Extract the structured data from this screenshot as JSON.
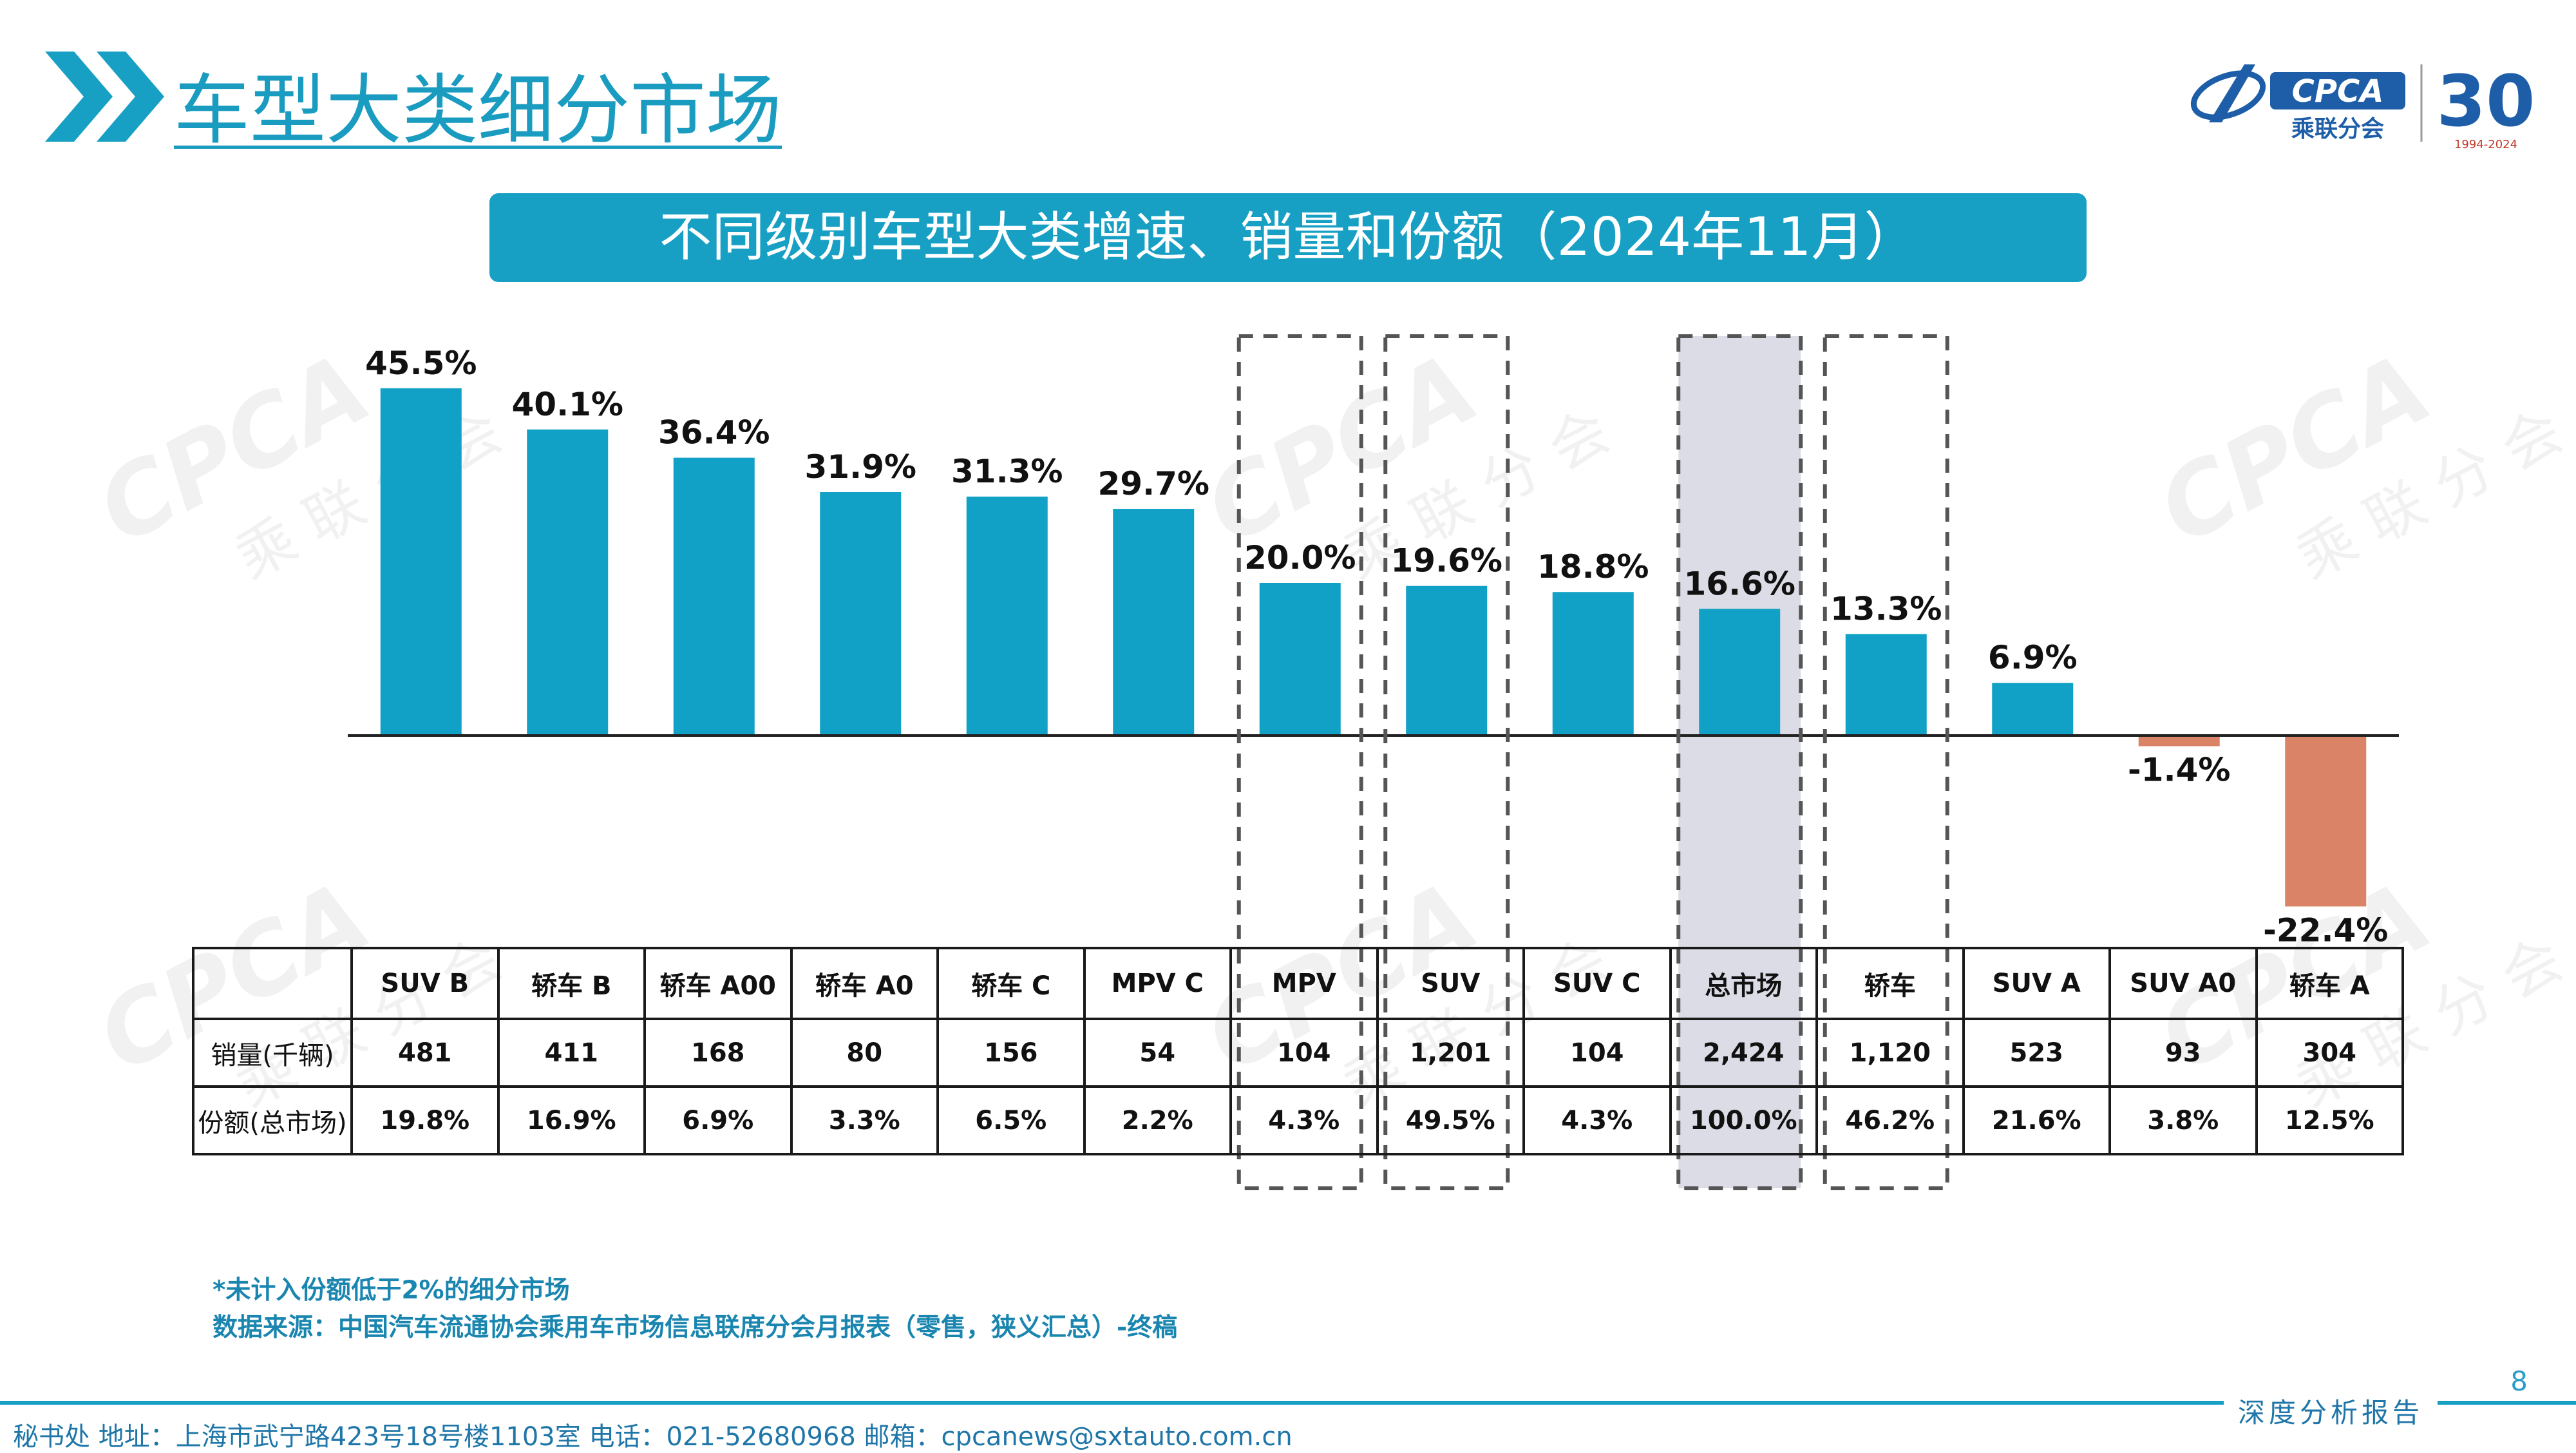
{
  "header": {
    "title": "车型大类细分市场"
  },
  "logo": {
    "brand": "CPCA",
    "org_cn": "乘联分会",
    "anniversary": "30",
    "years": "1994-2024"
  },
  "chart_data": {
    "type": "bar",
    "title": "不同级别车型大类增速、销量和份额（2024年11月）",
    "categories": [
      "SUV B",
      "轿车 B",
      "轿车 A00",
      "轿车 A0",
      "轿车 C",
      "MPV C",
      "MPV",
      "SUV",
      "SUV C",
      "总市场",
      "轿车",
      "SUV A",
      "SUV A0",
      "轿车 A"
    ],
    "values": [
      45.5,
      40.1,
      36.4,
      31.9,
      31.3,
      29.7,
      20.0,
      19.6,
      18.8,
      16.6,
      13.3,
      6.9,
      -1.4,
      -22.4
    ],
    "value_labels": [
      "45.5%",
      "40.1%",
      "36.4%",
      "31.9%",
      "31.3%",
      "29.7%",
      "20.0%",
      "19.6%",
      "18.8%",
      "16.6%",
      "13.3%",
      "6.9%",
      "-1.4%",
      "-22.4%"
    ],
    "unit": "%",
    "ylim": [
      -23,
      46
    ],
    "grid": false,
    "highlight_dashed": [
      "MPV",
      "SUV",
      "总市场",
      "轿车"
    ],
    "highlight_shaded": [
      "总市场"
    ],
    "colors": {
      "positive": "#12A1C6",
      "negative": "#DB8366",
      "shade": "#DCDCE6",
      "dash": "#555555"
    }
  },
  "table": {
    "row_headers": [
      "销量(千辆)",
      "份额(总市场)"
    ],
    "sales": [
      "481",
      "411",
      "168",
      "80",
      "156",
      "54",
      "104",
      "1,201",
      "104",
      "2,424",
      "1,120",
      "523",
      "93",
      "304"
    ],
    "share": [
      "19.8%",
      "16.9%",
      "6.9%",
      "3.3%",
      "6.5%",
      "2.2%",
      "4.3%",
      "49.5%",
      "4.3%",
      "100.0%",
      "46.2%",
      "21.6%",
      "3.8%",
      "12.5%"
    ]
  },
  "notes": {
    "line1": "*未计入份额低于2%的细分市场",
    "line2": "数据来源：中国汽车流通协会乘用车市场信息联席分会月报表（零售，狭义汇总）-终稿"
  },
  "footer": {
    "page_number": "8",
    "address": "秘书处  地址：上海市武宁路423号18号楼1103室  电话：021-52680968  邮箱：cpcanews@sxtauto.com.cn",
    "report_label": "深度分析报告"
  }
}
